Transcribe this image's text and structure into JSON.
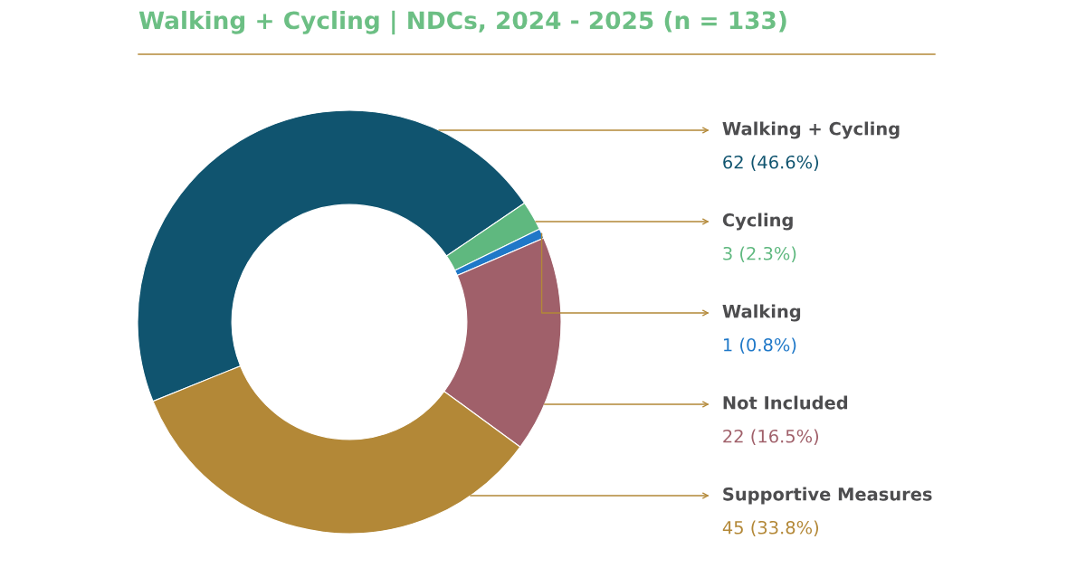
{
  "chart_data": {
    "type": "donut",
    "title": "Walking + Cycling | NDCs, 2024 - 2025 (n = 133)",
    "categories": [
      "Walking + Cycling",
      "Cycling",
      "Walking",
      "Not Included",
      "Supportive Measures"
    ],
    "values": [
      62,
      3,
      1,
      22,
      45
    ],
    "colors": [
      "#10546f",
      "#5fb87f",
      "#1f78c8",
      "#a0606a",
      "#b38837"
    ],
    "value_labels": [
      "62 (46.6%)",
      "3 (2.3%)",
      "1 (0.8%)",
      "22 (16.5%)",
      "45 (33.8%)"
    ]
  }
}
